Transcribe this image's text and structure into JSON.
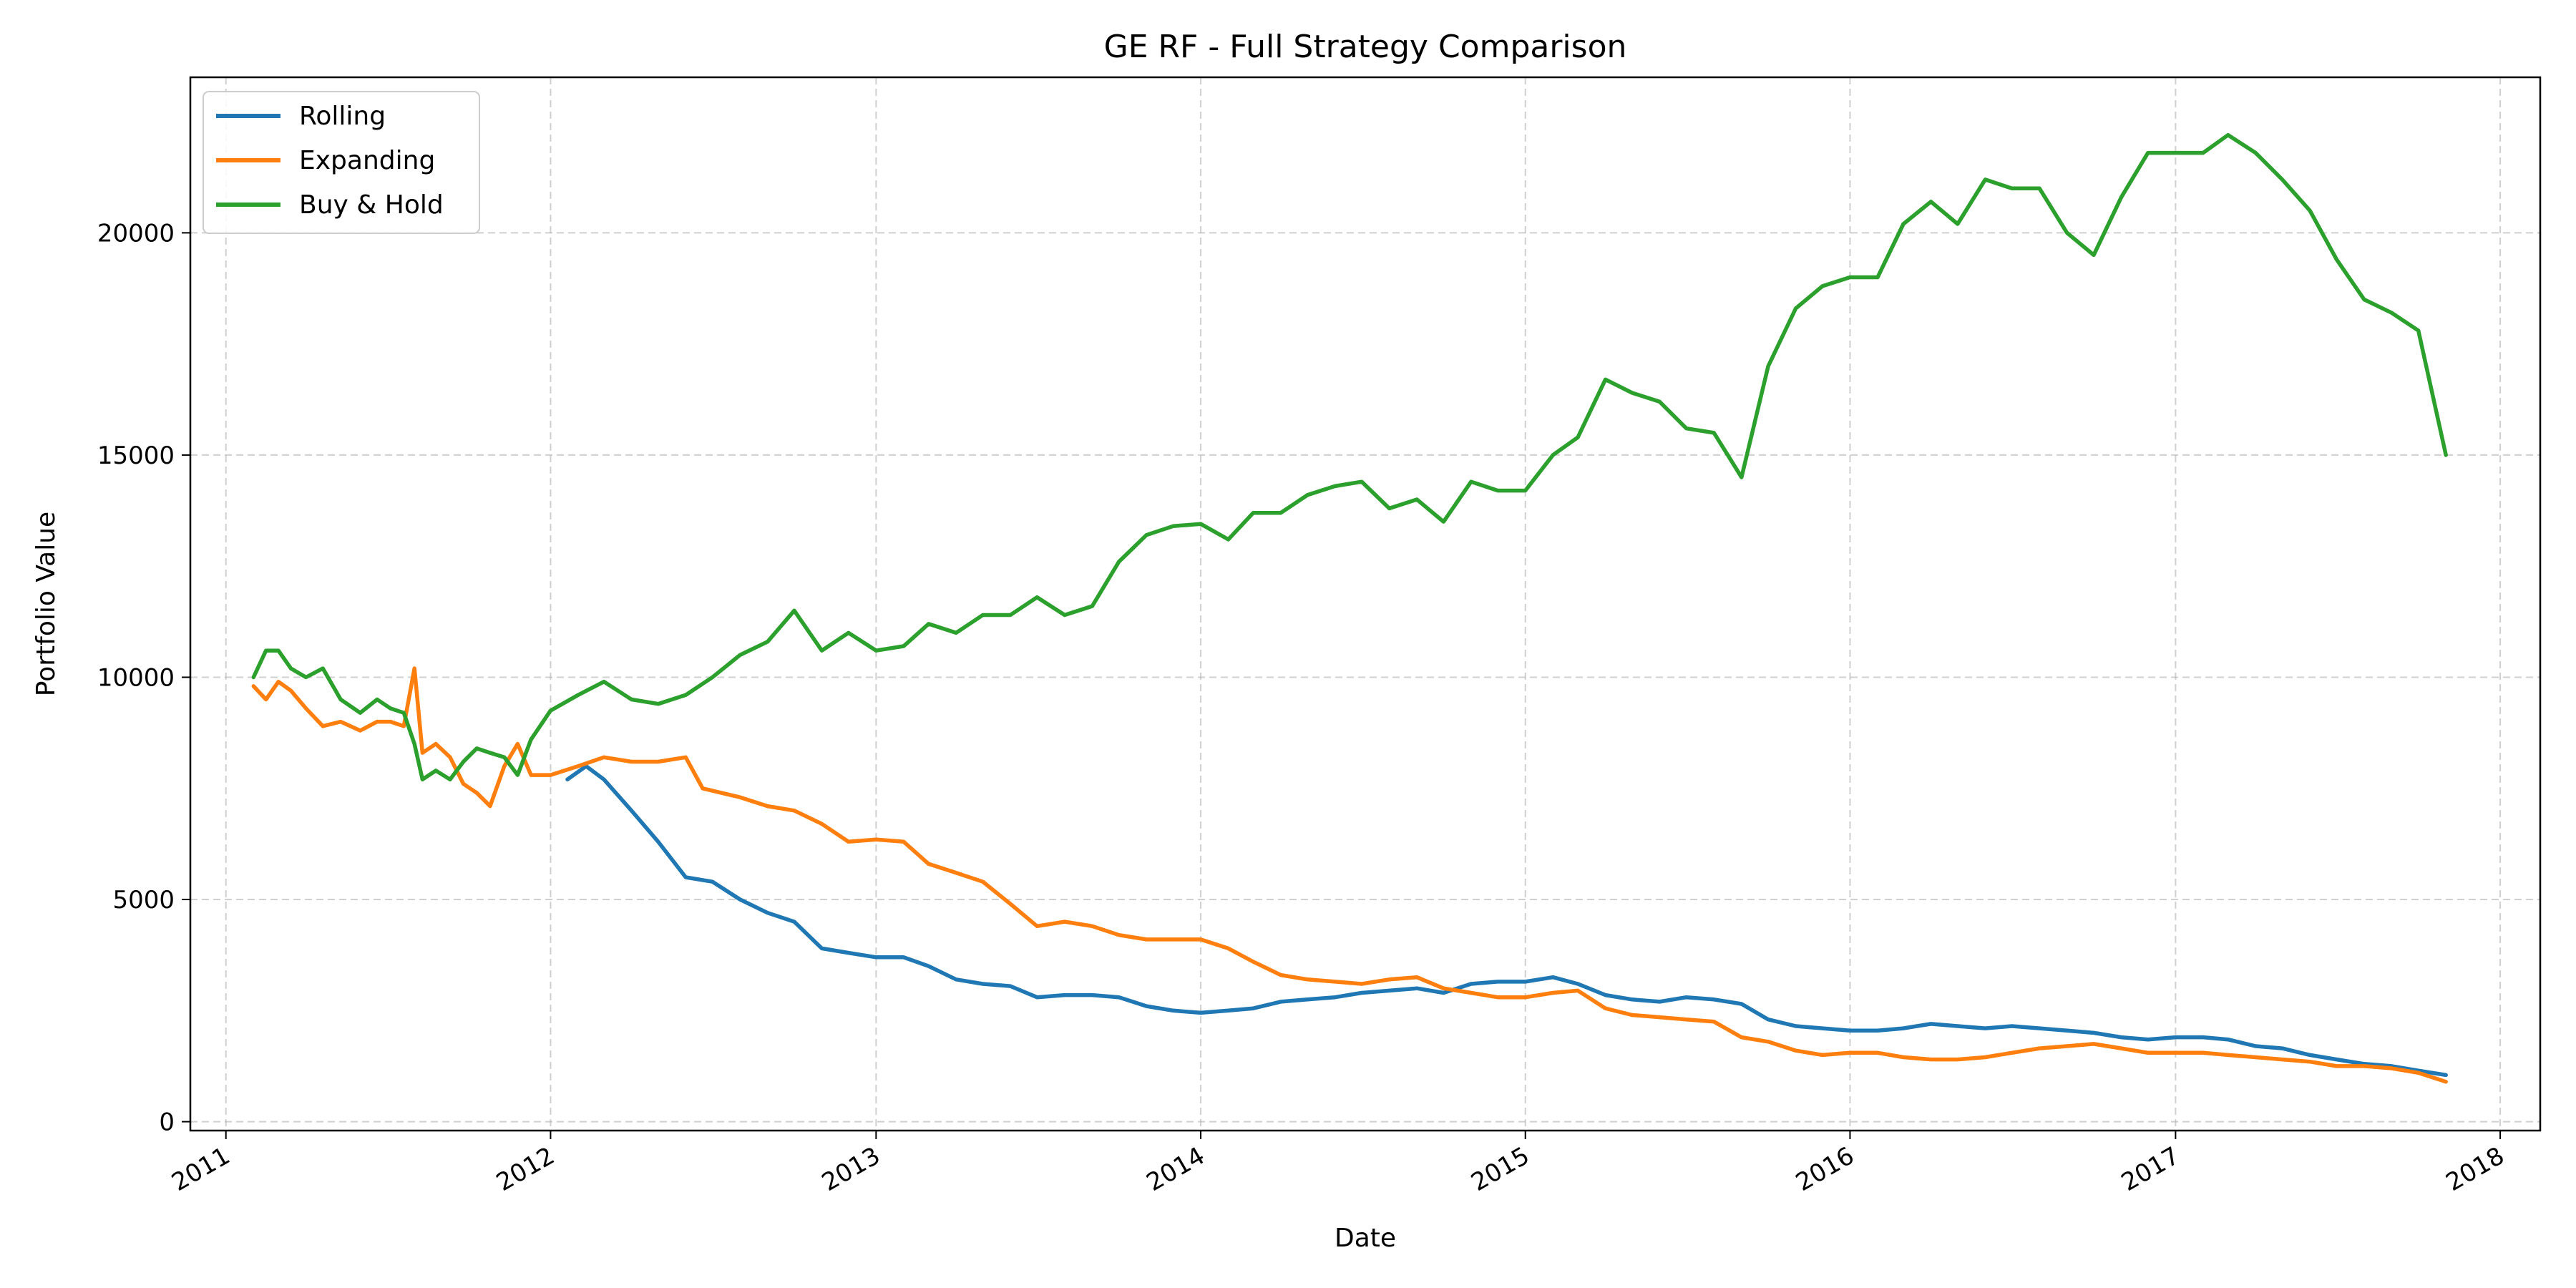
{
  "chart_data": {
    "type": "line",
    "title": "GE RF - Full Strategy Comparison",
    "xlabel": "Date",
    "ylabel": "Portfolio Value",
    "xlim": [
      "2010-11-22",
      "2018-02-15"
    ],
    "ylim": [
      -200,
      23500
    ],
    "x_ticks": [
      "2011-01-01",
      "2012-01-01",
      "2013-01-01",
      "2014-01-01",
      "2015-01-01",
      "2016-01-01",
      "2017-01-01",
      "2018-01-01"
    ],
    "x_tick_labels": [
      "2011",
      "2012",
      "2013",
      "2014",
      "2015",
      "2016",
      "2017",
      "2018"
    ],
    "y_ticks": [
      0,
      5000,
      10000,
      15000,
      20000
    ],
    "y_tick_labels": [
      "0",
      "5000",
      "10000",
      "15000",
      "20000"
    ],
    "grid": true,
    "legend_position": "top-left",
    "series": [
      {
        "name": "Rolling",
        "color": "#1f77b4",
        "points": [
          [
            "2012-01-20",
            7700
          ],
          [
            "2012-02-10",
            8000
          ],
          [
            "2012-03-01",
            7700
          ],
          [
            "2012-04-01",
            7000
          ],
          [
            "2012-05-01",
            6300
          ],
          [
            "2012-06-01",
            5500
          ],
          [
            "2012-07-01",
            5400
          ],
          [
            "2012-08-01",
            5000
          ],
          [
            "2012-09-01",
            4700
          ],
          [
            "2012-10-01",
            4500
          ],
          [
            "2012-11-01",
            3900
          ],
          [
            "2012-12-01",
            3800
          ],
          [
            "2013-01-01",
            3700
          ],
          [
            "2013-02-01",
            3700
          ],
          [
            "2013-03-01",
            3500
          ],
          [
            "2013-04-01",
            3200
          ],
          [
            "2013-05-01",
            3100
          ],
          [
            "2013-06-01",
            3050
          ],
          [
            "2013-07-01",
            2800
          ],
          [
            "2013-08-01",
            2850
          ],
          [
            "2013-09-01",
            2850
          ],
          [
            "2013-10-01",
            2800
          ],
          [
            "2013-11-01",
            2600
          ],
          [
            "2013-12-01",
            2500
          ],
          [
            "2014-01-01",
            2450
          ],
          [
            "2014-02-01",
            2500
          ],
          [
            "2014-03-01",
            2550
          ],
          [
            "2014-04-01",
            2700
          ],
          [
            "2014-05-01",
            2750
          ],
          [
            "2014-06-01",
            2800
          ],
          [
            "2014-07-01",
            2900
          ],
          [
            "2014-08-01",
            2950
          ],
          [
            "2014-09-01",
            3000
          ],
          [
            "2014-10-01",
            2900
          ],
          [
            "2014-11-01",
            3100
          ],
          [
            "2014-12-01",
            3150
          ],
          [
            "2015-01-01",
            3150
          ],
          [
            "2015-02-01",
            3250
          ],
          [
            "2015-03-01",
            3100
          ],
          [
            "2015-04-01",
            2850
          ],
          [
            "2015-05-01",
            2750
          ],
          [
            "2015-06-01",
            2700
          ],
          [
            "2015-07-01",
            2800
          ],
          [
            "2015-08-01",
            2750
          ],
          [
            "2015-09-01",
            2650
          ],
          [
            "2015-10-01",
            2300
          ],
          [
            "2015-11-01",
            2150
          ],
          [
            "2015-12-01",
            2100
          ],
          [
            "2016-01-01",
            2050
          ],
          [
            "2016-02-01",
            2050
          ],
          [
            "2016-03-01",
            2100
          ],
          [
            "2016-04-01",
            2200
          ],
          [
            "2016-05-01",
            2150
          ],
          [
            "2016-06-01",
            2100
          ],
          [
            "2016-07-01",
            2150
          ],
          [
            "2016-08-01",
            2100
          ],
          [
            "2016-09-01",
            2050
          ],
          [
            "2016-10-01",
            2000
          ],
          [
            "2016-11-01",
            1900
          ],
          [
            "2016-12-01",
            1850
          ],
          [
            "2017-01-01",
            1900
          ],
          [
            "2017-02-01",
            1900
          ],
          [
            "2017-03-01",
            1850
          ],
          [
            "2017-04-01",
            1700
          ],
          [
            "2017-05-01",
            1650
          ],
          [
            "2017-06-01",
            1500
          ],
          [
            "2017-07-01",
            1400
          ],
          [
            "2017-08-01",
            1300
          ],
          [
            "2017-09-01",
            1250
          ],
          [
            "2017-10-01",
            1150
          ],
          [
            "2017-11-01",
            1050
          ]
        ]
      },
      {
        "name": "Expanding",
        "color": "#ff7f0e",
        "points": [
          [
            "2011-02-01",
            9800
          ],
          [
            "2011-02-15",
            9500
          ],
          [
            "2011-03-01",
            9900
          ],
          [
            "2011-03-15",
            9700
          ],
          [
            "2011-04-01",
            9300
          ],
          [
            "2011-04-20",
            8900
          ],
          [
            "2011-05-10",
            9000
          ],
          [
            "2011-06-01",
            8800
          ],
          [
            "2011-06-20",
            9000
          ],
          [
            "2011-07-05",
            9000
          ],
          [
            "2011-07-20",
            8900
          ],
          [
            "2011-08-01",
            10200
          ],
          [
            "2011-08-10",
            8300
          ],
          [
            "2011-08-25",
            8500
          ],
          [
            "2011-09-10",
            8200
          ],
          [
            "2011-09-25",
            7600
          ],
          [
            "2011-10-10",
            7400
          ],
          [
            "2011-10-25",
            7100
          ],
          [
            "2011-11-10",
            8000
          ],
          [
            "2011-11-25",
            8500
          ],
          [
            "2011-12-10",
            7800
          ],
          [
            "2012-01-01",
            7800
          ],
          [
            "2012-02-01",
            8000
          ],
          [
            "2012-03-01",
            8200
          ],
          [
            "2012-04-01",
            8100
          ],
          [
            "2012-05-01",
            8100
          ],
          [
            "2012-06-01",
            8200
          ],
          [
            "2012-06-20",
            7500
          ],
          [
            "2012-08-01",
            7300
          ],
          [
            "2012-09-01",
            7100
          ],
          [
            "2012-10-01",
            7000
          ],
          [
            "2012-11-01",
            6700
          ],
          [
            "2012-12-01",
            6300
          ],
          [
            "2013-01-01",
            6350
          ],
          [
            "2013-02-01",
            6300
          ],
          [
            "2013-03-01",
            5800
          ],
          [
            "2013-04-01",
            5600
          ],
          [
            "2013-05-01",
            5400
          ],
          [
            "2013-06-01",
            4900
          ],
          [
            "2013-07-01",
            4400
          ],
          [
            "2013-08-01",
            4500
          ],
          [
            "2013-09-01",
            4400
          ],
          [
            "2013-10-01",
            4200
          ],
          [
            "2013-11-01",
            4100
          ],
          [
            "2013-12-01",
            4100
          ],
          [
            "2014-01-01",
            4100
          ],
          [
            "2014-02-01",
            3900
          ],
          [
            "2014-03-01",
            3600
          ],
          [
            "2014-04-01",
            3300
          ],
          [
            "2014-05-01",
            3200
          ],
          [
            "2014-06-01",
            3150
          ],
          [
            "2014-07-01",
            3100
          ],
          [
            "2014-08-01",
            3200
          ],
          [
            "2014-09-01",
            3250
          ],
          [
            "2014-10-01",
            3000
          ],
          [
            "2014-11-01",
            2900
          ],
          [
            "2014-12-01",
            2800
          ],
          [
            "2015-01-01",
            2800
          ],
          [
            "2015-02-01",
            2900
          ],
          [
            "2015-03-01",
            2950
          ],
          [
            "2015-04-01",
            2550
          ],
          [
            "2015-05-01",
            2400
          ],
          [
            "2015-06-01",
            2350
          ],
          [
            "2015-07-01",
            2300
          ],
          [
            "2015-08-01",
            2250
          ],
          [
            "2015-09-01",
            1900
          ],
          [
            "2015-10-01",
            1800
          ],
          [
            "2015-11-01",
            1600
          ],
          [
            "2015-12-01",
            1500
          ],
          [
            "2016-01-01",
            1550
          ],
          [
            "2016-02-01",
            1550
          ],
          [
            "2016-03-01",
            1450
          ],
          [
            "2016-04-01",
            1400
          ],
          [
            "2016-05-01",
            1400
          ],
          [
            "2016-06-01",
            1450
          ],
          [
            "2016-07-01",
            1550
          ],
          [
            "2016-08-01",
            1650
          ],
          [
            "2016-09-01",
            1700
          ],
          [
            "2016-10-01",
            1750
          ],
          [
            "2016-11-01",
            1650
          ],
          [
            "2016-12-01",
            1550
          ],
          [
            "2017-01-01",
            1550
          ],
          [
            "2017-02-01",
            1550
          ],
          [
            "2017-03-01",
            1500
          ],
          [
            "2017-04-01",
            1450
          ],
          [
            "2017-05-01",
            1400
          ],
          [
            "2017-06-01",
            1350
          ],
          [
            "2017-07-01",
            1250
          ],
          [
            "2017-08-01",
            1250
          ],
          [
            "2017-09-01",
            1200
          ],
          [
            "2017-10-01",
            1100
          ],
          [
            "2017-11-01",
            900
          ]
        ]
      },
      {
        "name": "Buy & Hold",
        "color": "#2ca02c",
        "points": [
          [
            "2011-02-01",
            10000
          ],
          [
            "2011-02-15",
            10600
          ],
          [
            "2011-03-01",
            10600
          ],
          [
            "2011-03-15",
            10200
          ],
          [
            "2011-04-01",
            10000
          ],
          [
            "2011-04-20",
            10200
          ],
          [
            "2011-05-10",
            9500
          ],
          [
            "2011-06-01",
            9200
          ],
          [
            "2011-06-20",
            9500
          ],
          [
            "2011-07-05",
            9300
          ],
          [
            "2011-07-20",
            9200
          ],
          [
            "2011-08-01",
            8500
          ],
          [
            "2011-08-10",
            7700
          ],
          [
            "2011-08-25",
            7900
          ],
          [
            "2011-09-10",
            7700
          ],
          [
            "2011-09-25",
            8100
          ],
          [
            "2011-10-10",
            8400
          ],
          [
            "2011-10-25",
            8300
          ],
          [
            "2011-11-10",
            8200
          ],
          [
            "2011-11-25",
            7800
          ],
          [
            "2011-12-10",
            8600
          ],
          [
            "2012-01-01",
            9250
          ],
          [
            "2012-02-01",
            9600
          ],
          [
            "2012-03-01",
            9900
          ],
          [
            "2012-04-01",
            9500
          ],
          [
            "2012-05-01",
            9400
          ],
          [
            "2012-06-01",
            9600
          ],
          [
            "2012-07-01",
            10000
          ],
          [
            "2012-08-01",
            10500
          ],
          [
            "2012-09-01",
            10800
          ],
          [
            "2012-10-01",
            11500
          ],
          [
            "2012-11-01",
            10600
          ],
          [
            "2012-12-01",
            11000
          ],
          [
            "2013-01-01",
            10600
          ],
          [
            "2013-02-01",
            10700
          ],
          [
            "2013-03-01",
            11200
          ],
          [
            "2013-04-01",
            11000
          ],
          [
            "2013-05-01",
            11400
          ],
          [
            "2013-06-01",
            11400
          ],
          [
            "2013-07-01",
            11800
          ],
          [
            "2013-08-01",
            11400
          ],
          [
            "2013-09-01",
            11600
          ],
          [
            "2013-10-01",
            12600
          ],
          [
            "2013-11-01",
            13200
          ],
          [
            "2013-12-01",
            13400
          ],
          [
            "2014-01-01",
            13450
          ],
          [
            "2014-02-01",
            13100
          ],
          [
            "2014-03-01",
            13700
          ],
          [
            "2014-04-01",
            13700
          ],
          [
            "2014-05-01",
            14100
          ],
          [
            "2014-06-01",
            14300
          ],
          [
            "2014-07-01",
            14400
          ],
          [
            "2014-08-01",
            13800
          ],
          [
            "2014-09-01",
            14000
          ],
          [
            "2014-10-01",
            13500
          ],
          [
            "2014-11-01",
            14400
          ],
          [
            "2014-12-01",
            14200
          ],
          [
            "2015-01-01",
            14200
          ],
          [
            "2015-02-01",
            15000
          ],
          [
            "2015-03-01",
            15400
          ],
          [
            "2015-04-01",
            16700
          ],
          [
            "2015-05-01",
            16400
          ],
          [
            "2015-06-01",
            16200
          ],
          [
            "2015-07-01",
            15600
          ],
          [
            "2015-08-01",
            15500
          ],
          [
            "2015-09-01",
            14500
          ],
          [
            "2015-10-01",
            17000
          ],
          [
            "2015-11-01",
            18300
          ],
          [
            "2015-12-01",
            18800
          ],
          [
            "2016-01-01",
            19000
          ],
          [
            "2016-02-01",
            19000
          ],
          [
            "2016-03-01",
            20200
          ],
          [
            "2016-04-01",
            20700
          ],
          [
            "2016-05-01",
            20200
          ],
          [
            "2016-06-01",
            21200
          ],
          [
            "2016-07-01",
            21000
          ],
          [
            "2016-08-01",
            21000
          ],
          [
            "2016-09-01",
            20000
          ],
          [
            "2016-10-01",
            19500
          ],
          [
            "2016-11-01",
            20800
          ],
          [
            "2016-12-01",
            21800
          ],
          [
            "2017-01-01",
            21800
          ],
          [
            "2017-02-01",
            21800
          ],
          [
            "2017-03-01",
            22200
          ],
          [
            "2017-04-01",
            21800
          ],
          [
            "2017-05-01",
            21200
          ],
          [
            "2017-06-01",
            20500
          ],
          [
            "2017-07-01",
            19400
          ],
          [
            "2017-08-01",
            18500
          ],
          [
            "2017-09-01",
            18200
          ],
          [
            "2017-10-01",
            17800
          ],
          [
            "2017-11-01",
            15000
          ]
        ]
      }
    ]
  }
}
